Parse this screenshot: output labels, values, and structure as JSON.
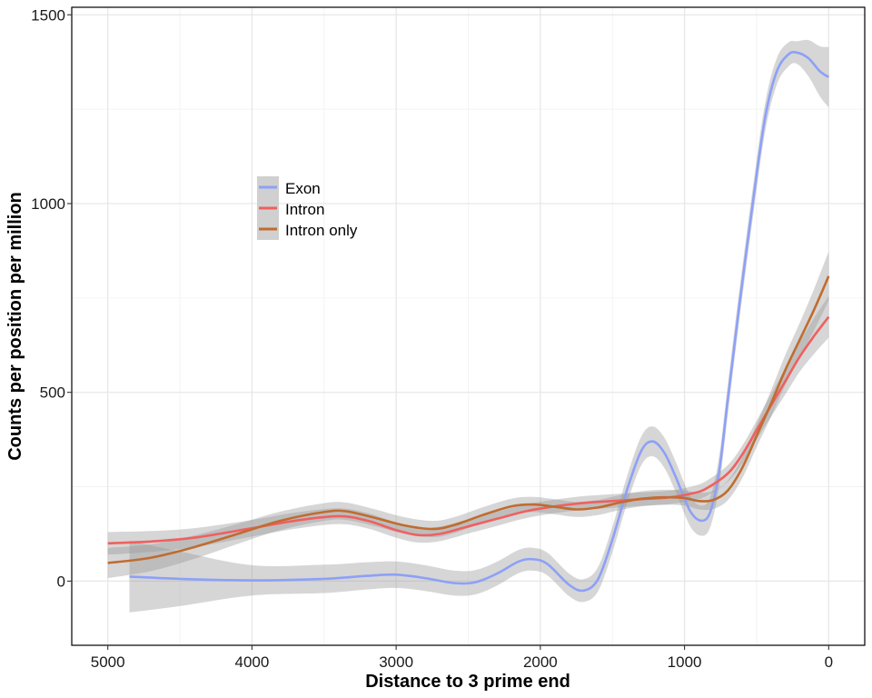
{
  "chart_data": {
    "type": "line",
    "xlabel": "Distance to 3 prime end",
    "ylabel": "Counts per position per million",
    "xlim": [
      5250,
      -250
    ],
    "ylim": [
      -170,
      1520
    ],
    "x_reversed": true,
    "x_ticks": [
      5000,
      4000,
      3000,
      2000,
      1000,
      0
    ],
    "y_ticks": [
      0,
      500,
      1000,
      1500
    ],
    "x_tick_labels": [
      "5000",
      "4000",
      "3000",
      "2000",
      "1000",
      "0"
    ],
    "y_tick_labels": [
      "0",
      "500",
      "1000",
      "1500"
    ],
    "grid": true,
    "legend_position": "top-left (inside plot)",
    "band_color": "#999999",
    "series": [
      {
        "name": "Exon",
        "color": "#8da0f8",
        "points": [
          [
            4850,
            12
          ],
          [
            4500,
            6
          ],
          [
            4000,
            2
          ],
          [
            3500,
            6
          ],
          [
            3200,
            14
          ],
          [
            3000,
            17
          ],
          [
            2800,
            8
          ],
          [
            2600,
            -5
          ],
          [
            2450,
            -3
          ],
          [
            2300,
            20
          ],
          [
            2150,
            52
          ],
          [
            2050,
            58
          ],
          [
            1950,
            45
          ],
          [
            1800,
            -10
          ],
          [
            1700,
            -25
          ],
          [
            1600,
            5
          ],
          [
            1500,
            110
          ],
          [
            1400,
            240
          ],
          [
            1300,
            345
          ],
          [
            1220,
            370
          ],
          [
            1140,
            340
          ],
          [
            1060,
            275
          ],
          [
            960,
            185
          ],
          [
            880,
            160
          ],
          [
            820,
            185
          ],
          [
            760,
            290
          ],
          [
            700,
            480
          ],
          [
            620,
            730
          ],
          [
            520,
            1020
          ],
          [
            440,
            1230
          ],
          [
            360,
            1350
          ],
          [
            280,
            1395
          ],
          [
            220,
            1400
          ],
          [
            140,
            1385
          ],
          [
            60,
            1350
          ],
          [
            0,
            1335
          ]
        ],
        "band_width": [
          [
            4850,
            95
          ],
          [
            4000,
            40
          ],
          [
            3000,
            35
          ],
          [
            2000,
            30
          ],
          [
            1700,
            30
          ],
          [
            1200,
            40
          ],
          [
            900,
            40
          ],
          [
            500,
            40
          ],
          [
            220,
            30
          ],
          [
            0,
            80
          ]
        ]
      },
      {
        "name": "Intron",
        "color": "#f06060",
        "points": [
          [
            5000,
            100
          ],
          [
            4700,
            105
          ],
          [
            4400,
            115
          ],
          [
            4000,
            140
          ],
          [
            3700,
            160
          ],
          [
            3400,
            172
          ],
          [
            3200,
            160
          ],
          [
            3000,
            135
          ],
          [
            2850,
            122
          ],
          [
            2700,
            125
          ],
          [
            2500,
            145
          ],
          [
            2300,
            165
          ],
          [
            2100,
            185
          ],
          [
            1900,
            198
          ],
          [
            1700,
            207
          ],
          [
            1500,
            212
          ],
          [
            1300,
            217
          ],
          [
            1100,
            222
          ],
          [
            950,
            232
          ],
          [
            850,
            245
          ],
          [
            700,
            285
          ],
          [
            600,
            335
          ],
          [
            500,
            400
          ],
          [
            400,
            465
          ],
          [
            300,
            530
          ],
          [
            200,
            595
          ],
          [
            100,
            650
          ],
          [
            0,
            700
          ]
        ],
        "band_width": [
          [
            5000,
            30
          ],
          [
            4000,
            22
          ],
          [
            3000,
            20
          ],
          [
            2000,
            18
          ],
          [
            1000,
            18
          ],
          [
            500,
            25
          ],
          [
            200,
            40
          ],
          [
            0,
            55
          ]
        ]
      },
      {
        "name": "Intron only",
        "color": "#c06c30",
        "points": [
          [
            5000,
            48
          ],
          [
            4700,
            62
          ],
          [
            4400,
            90
          ],
          [
            4100,
            125
          ],
          [
            3800,
            160
          ],
          [
            3500,
            183
          ],
          [
            3350,
            185
          ],
          [
            3150,
            168
          ],
          [
            2950,
            148
          ],
          [
            2750,
            138
          ],
          [
            2600,
            148
          ],
          [
            2400,
            175
          ],
          [
            2200,
            198
          ],
          [
            2050,
            203
          ],
          [
            1900,
            197
          ],
          [
            1750,
            190
          ],
          [
            1600,
            195
          ],
          [
            1450,
            208
          ],
          [
            1300,
            218
          ],
          [
            1150,
            222
          ],
          [
            1000,
            220
          ],
          [
            900,
            212
          ],
          [
            800,
            215
          ],
          [
            700,
            240
          ],
          [
            600,
            300
          ],
          [
            500,
            385
          ],
          [
            400,
            470
          ],
          [
            300,
            560
          ],
          [
            200,
            640
          ],
          [
            100,
            720
          ],
          [
            0,
            808
          ]
        ],
        "band_width": [
          [
            5000,
            40
          ],
          [
            4000,
            25
          ],
          [
            3000,
            22
          ],
          [
            2000,
            20
          ],
          [
            1000,
            20
          ],
          [
            500,
            30
          ],
          [
            200,
            45
          ],
          [
            0,
            65
          ]
        ]
      }
    ]
  }
}
